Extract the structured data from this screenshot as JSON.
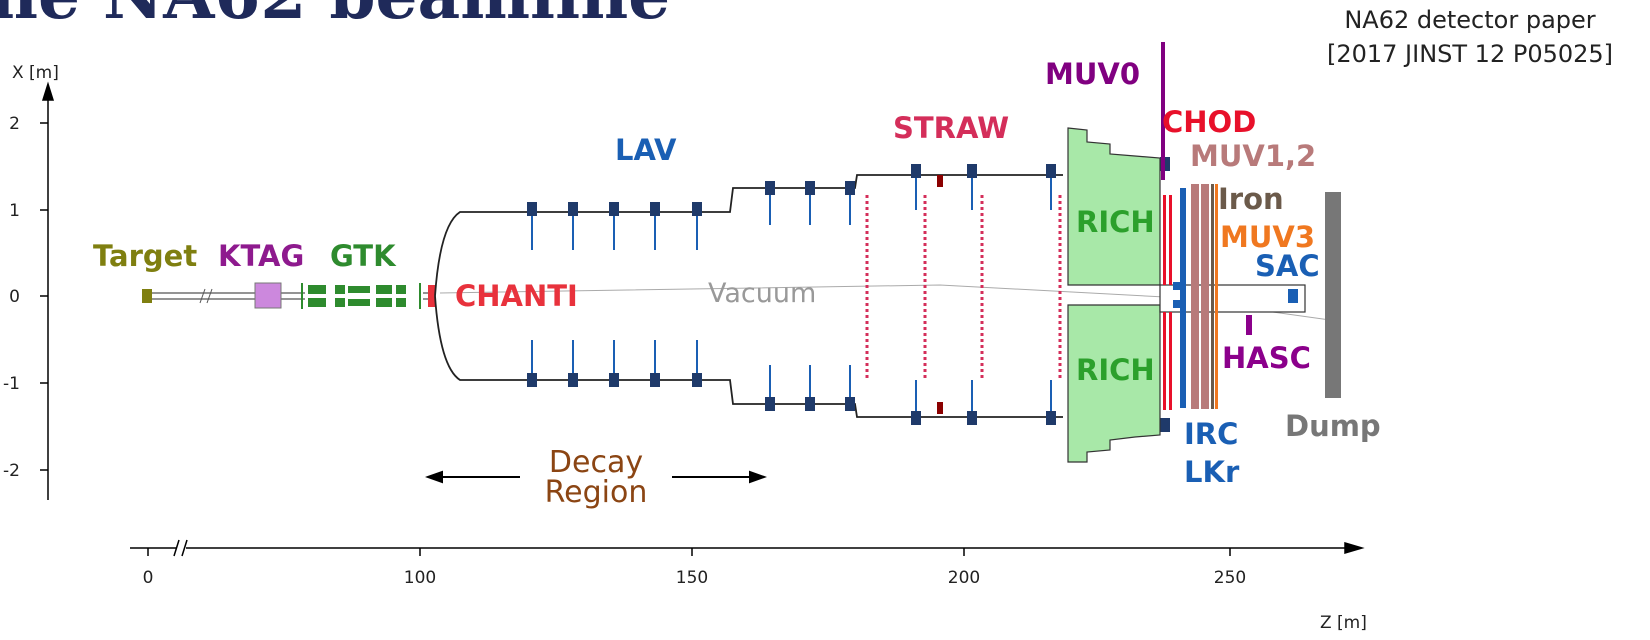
{
  "title": "he NA62 beamline",
  "reference": [
    "NA62 detector paper",
    "[2017 JINST 12 P05025]"
  ],
  "x_axis": {
    "label": "X [m]",
    "ticks": [
      2,
      1,
      0,
      -1,
      -2
    ]
  },
  "z_axis": {
    "label": "Z [m]",
    "ticks": [
      0,
      100,
      150,
      200,
      250
    ]
  },
  "labels": [
    {
      "text": "Target",
      "color": "#7f7f10"
    },
    {
      "text": "KTAG",
      "color": "#8e1a8e"
    },
    {
      "text": "GTK",
      "color": "#2e8b2e"
    },
    {
      "text": "CHANTI",
      "color": "#e8323c"
    },
    {
      "text": "LAV",
      "color": "#1a5fb4"
    },
    {
      "text": "STRAW",
      "color": "#d42e5a"
    },
    {
      "text": "MUV0",
      "color": "#800080"
    },
    {
      "text": "CHOD",
      "color": "#e8102a"
    },
    {
      "text": "MUV1,2",
      "color": "#b87a7a"
    },
    {
      "text": "Iron",
      "color": "#6b5a4a"
    },
    {
      "text": "MUV3",
      "color": "#f07820"
    },
    {
      "text": "SAC",
      "color": "#1a5fb4"
    },
    {
      "text": "HASC",
      "color": "#8b008b"
    },
    {
      "text": "RICH",
      "color": "#2ca02c"
    },
    {
      "text": "RICH",
      "color": "#2ca02c"
    },
    {
      "text": "IRC",
      "color": "#1a5fb4"
    },
    {
      "text": "LKr",
      "color": "#1a5fb4"
    },
    {
      "text": "Dump",
      "color": "#777777"
    },
    {
      "text": "Vacuum",
      "color": "#999999"
    },
    {
      "text": "Decay",
      "color": "#8b4513"
    },
    {
      "text": "Region",
      "color": "#8b4513"
    }
  ]
}
